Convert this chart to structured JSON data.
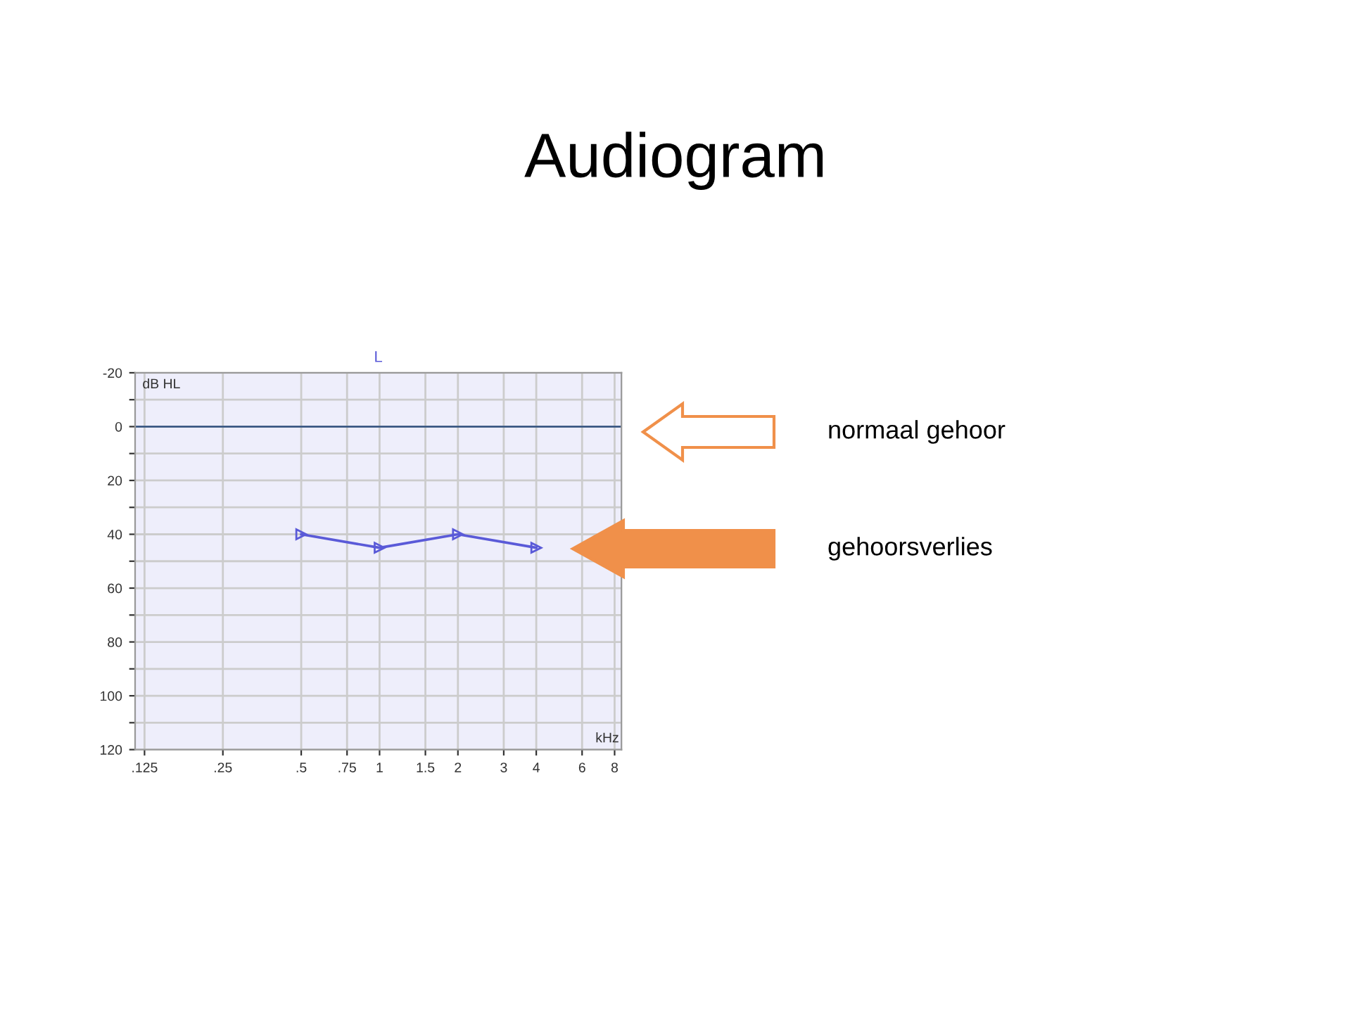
{
  "chart_data": {
    "type": "line",
    "title": "Audiogram",
    "xlabel": "kHz",
    "ylabel": "dB HL",
    "x": [
      0.5,
      1,
      2,
      4
    ],
    "series": [
      {
        "color": "#5a5ad8",
        "values": [
          40,
          45,
          40,
          45
        ]
      }
    ],
    "log": "x",
    "marker": "triangle",
    "line_style": "solid",
    "grid": true,
    "xlim": [
      0.115,
      8.5
    ],
    "xticks": [
      {
        "value": 0.125,
        "label": ".125"
      },
      {
        "value": 0.25,
        "label": ".25"
      },
      {
        "value": 0.5,
        "label": ".5"
      },
      {
        "value": 0.75,
        "label": ".75"
      },
      1,
      1.5,
      2,
      3,
      4,
      6,
      8
    ],
    "ylim": [
      120,
      -20
    ],
    "yticks": [
      -20,
      {
        "value": -10,
        "label": null
      },
      0,
      {
        "value": 10,
        "label": null
      },
      20,
      {
        "value": 30,
        "label": null
      },
      40,
      {
        "value": 50,
        "label": null
      },
      60,
      {
        "value": 70,
        "label": null
      },
      80,
      {
        "value": 90,
        "label": null
      },
      100,
      {
        "value": 110,
        "label": null
      },
      120
    ],
    "ref_lines": [
      {
        "axis": "y",
        "value": 0,
        "color": "#2f4f7f"
      }
    ],
    "annotations": [
      "L",
      "normaal gehoor",
      "gehoorsverlies"
    ]
  }
}
